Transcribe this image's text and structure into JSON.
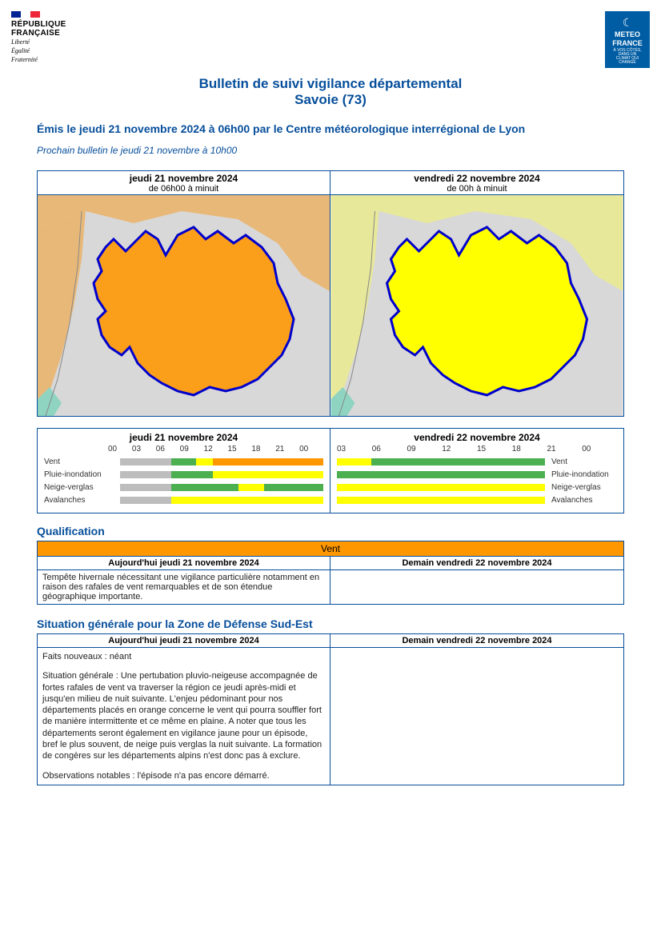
{
  "colors": {
    "primary": "#064e9b",
    "orange": "#ff9800",
    "yellow": "#ffff00",
    "green": "#4caf50",
    "grey": "#bdbdbd",
    "map_border": "#0000cc",
    "map_bg_grey": "#d8d8d8",
    "map_orange_light": "#e8b878",
    "map_orange": "#fb9f1a",
    "map_yellow_light": "#e8e89a",
    "map_yellow": "#ffff00",
    "map_teal": "#8fd4c0",
    "flag_blue": "#002395",
    "flag_white": "#ffffff",
    "flag_red": "#ed2939",
    "mf_blue": "#005da4"
  },
  "logo_rf": {
    "line1": "RÉPUBLIQUE",
    "line2": "FRANÇAISE",
    "motto1": "Liberté",
    "motto2": "Égalité",
    "motto3": "Fraternité"
  },
  "logo_mf": {
    "line1": "METEO",
    "line2": "FRANCE",
    "sub": "À VOS CÔTÉS, DANS UN CLIMAT QUI CHANGE"
  },
  "title1": "Bulletin de suivi vigilance départemental",
  "title2": "Savoie (73)",
  "issued": "Émis le jeudi 21 novembre 2024 à 06h00 par le Centre météorologique interrégional de Lyon",
  "next": "Prochain bulletin le jeudi 21 novembre à 10h00",
  "maps": {
    "day1": {
      "date": "jeudi 21 novembre 2024",
      "range": "de 06h00 à minuit",
      "fill": "#fb9f1a",
      "surround": "#e8b878"
    },
    "day2": {
      "date": "vendredi 22 novembre 2024",
      "range": "de 00h à minuit",
      "fill": "#ffff00",
      "surround": "#e8e89a"
    }
  },
  "timeline": {
    "day1_title": "jeudi 21 novembre 2024",
    "day2_title": "vendredi 22 novembre 2024",
    "day1_offset_hours": 6,
    "hours_day1": [
      "00",
      "03",
      "06",
      "09",
      "12",
      "15",
      "18",
      "21",
      "00"
    ],
    "hours_day2": [
      "03",
      "06",
      "09",
      "12",
      "15",
      "18",
      "21",
      "00"
    ],
    "hazards": [
      "Vent",
      "Pluie-inondation",
      "Neige-verglas",
      "Avalanches"
    ],
    "day1": {
      "Vent": [
        {
          "from": 6,
          "to": 9,
          "c": "#4caf50"
        },
        {
          "from": 9,
          "to": 11,
          "c": "#ffff00"
        },
        {
          "from": 11,
          "to": 24,
          "c": "#ff9800"
        }
      ],
      "Pluie-inondation": [
        {
          "from": 6,
          "to": 11,
          "c": "#4caf50"
        },
        {
          "from": 11,
          "to": 24,
          "c": "#ffff00"
        }
      ],
      "Neige-verglas": [
        {
          "from": 6,
          "to": 14,
          "c": "#4caf50"
        },
        {
          "from": 14,
          "to": 17,
          "c": "#ffff00"
        },
        {
          "from": 17,
          "to": 24,
          "c": "#4caf50"
        }
      ],
      "Avalanches": [
        {
          "from": 6,
          "to": 24,
          "c": "#ffff00"
        }
      ]
    },
    "day2": {
      "Vent": [
        {
          "from": 0,
          "to": 4,
          "c": "#ffff00"
        },
        {
          "from": 4,
          "to": 24,
          "c": "#4caf50"
        }
      ],
      "Pluie-inondation": [
        {
          "from": 0,
          "to": 24,
          "c": "#4caf50"
        }
      ],
      "Neige-verglas": [
        {
          "from": 0,
          "to": 24,
          "c": "#ffff00"
        }
      ],
      "Avalanches": [
        {
          "from": 0,
          "to": 24,
          "c": "#ffff00"
        }
      ]
    }
  },
  "qualification": {
    "heading": "Qualification",
    "hazard": "Vent",
    "hazard_bg": "#ff9800",
    "day1_label": "Aujourd'hui jeudi 21 novembre 2024",
    "day2_label": "Demain vendredi 22 novembre 2024",
    "day1_text": "Tempête hivernale nécessitant une vigilance particulière notamment en raison des rafales de vent remarquables et de son étendue géographique importante.",
    "day2_text": ""
  },
  "situation": {
    "heading": "Situation générale pour la Zone de Défense Sud-Est",
    "day1_label": "Aujourd'hui jeudi 21 novembre 2024",
    "day2_label": "Demain vendredi 22 novembre 2024",
    "day1_p1": "Faits nouveaux : néant",
    "day1_p2": "Situation générale : Une pertubation pluvio-neigeuse accompagnée de fortes rafales de vent va traverser la région ce jeudi après-midi et jusqu'en milieu de nuit suivante. L'enjeu pédominant pour nos départements placés en orange concerne le vent qui pourra souffler fort de manière intermittente et ce même en plaine. A noter que tous les départements seront également en vigilance jaune pour un épisode, bref le plus souvent, de neige puis verglas la nuit suivante. La formation de congères sur les départements alpins n'est donc pas à exclure.",
    "day1_p3": "Observations notables : l'épisode n'a pas encore démarré.",
    "day2_text": ""
  }
}
